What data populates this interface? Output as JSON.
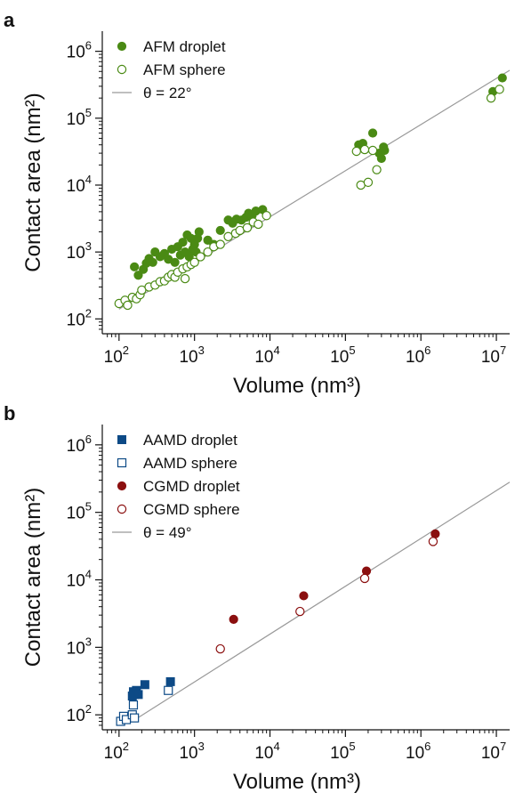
{
  "chart_data": [
    {
      "type": "scatter",
      "panel": "a",
      "xlabel": "Volume (nm³)",
      "ylabel": "Contact area (nm²)",
      "x_scale": "log",
      "y_scale": "log",
      "xlim": [
        60,
        15000000
      ],
      "ylim": [
        60,
        2000000
      ],
      "x_ticks": [
        100,
        1000,
        10000,
        100000,
        1000000,
        10000000
      ],
      "y_ticks": [
        100,
        1000,
        10000,
        100000,
        1000000
      ],
      "tick_base": "10",
      "x_tick_exponents": [
        "2",
        "3",
        "4",
        "5",
        "6",
        "7"
      ],
      "y_tick_exponents": [
        "2",
        "3",
        "4",
        "5",
        "6"
      ],
      "legend_position": "top-left",
      "series": [
        {
          "name": "AFM droplet",
          "marker": "filled-circle",
          "color": "#4a8a14",
          "points": [
            [
              160,
              600
            ],
            [
              180,
              450
            ],
            [
              210,
              550
            ],
            [
              230,
              680
            ],
            [
              250,
              800
            ],
            [
              280,
              700
            ],
            [
              300,
              1000
            ],
            [
              350,
              850
            ],
            [
              400,
              950
            ],
            [
              450,
              780
            ],
            [
              500,
              1100
            ],
            [
              550,
              700
            ],
            [
              600,
              1200
            ],
            [
              650,
              900
            ],
            [
              700,
              1400
            ],
            [
              750,
              1000
            ],
            [
              800,
              1800
            ],
            [
              850,
              850
            ],
            [
              900,
              1600
            ],
            [
              950,
              1100
            ],
            [
              1000,
              1300
            ],
            [
              1050,
              1000
            ],
            [
              1100,
              1600
            ],
            [
              1150,
              2000
            ],
            [
              1500,
              1500
            ],
            [
              1800,
              1300
            ],
            [
              2200,
              2100
            ],
            [
              2800,
              3000
            ],
            [
              3200,
              2700
            ],
            [
              3600,
              3100
            ],
            [
              4200,
              3000
            ],
            [
              4800,
              3300
            ],
            [
              5200,
              3800
            ],
            [
              5800,
              3500
            ],
            [
              6500,
              4100
            ],
            [
              8000,
              4300
            ],
            [
              150000,
              40000
            ],
            [
              170000,
              42000
            ],
            [
              230000,
              60000
            ],
            [
              280000,
              30000
            ],
            [
              320000,
              37000
            ],
            [
              300000,
              25000
            ],
            [
              330000,
              33000
            ],
            [
              9000000,
              250000
            ],
            [
              12000000,
              400000
            ]
          ]
        },
        {
          "name": "AFM sphere",
          "marker": "open-circle",
          "color": "#4a8a14",
          "points": [
            [
              100,
              170
            ],
            [
              120,
              190
            ],
            [
              130,
              160
            ],
            [
              150,
              210
            ],
            [
              170,
              200
            ],
            [
              190,
              230
            ],
            [
              200,
              270
            ],
            [
              250,
              300
            ],
            [
              300,
              320
            ],
            [
              350,
              360
            ],
            [
              400,
              370
            ],
            [
              450,
              420
            ],
            [
              500,
              460
            ],
            [
              550,
              420
            ],
            [
              600,
              500
            ],
            [
              700,
              560
            ],
            [
              750,
              400
            ],
            [
              800,
              600
            ],
            [
              900,
              650
            ],
            [
              1000,
              700
            ],
            [
              1200,
              850
            ],
            [
              1500,
              1000
            ],
            [
              1800,
              1200
            ],
            [
              2200,
              1300
            ],
            [
              2800,
              1700
            ],
            [
              3500,
              1900
            ],
            [
              4000,
              2100
            ],
            [
              5000,
              2300
            ],
            [
              6000,
              2800
            ],
            [
              7000,
              2600
            ],
            [
              9000,
              3500
            ],
            [
              140000,
              32000
            ],
            [
              160000,
              10000
            ],
            [
              180000,
              34000
            ],
            [
              200000,
              11000
            ],
            [
              230000,
              33000
            ],
            [
              260000,
              17000
            ],
            [
              8500000,
              200000
            ],
            [
              11000000,
              270000
            ]
          ]
        },
        {
          "name": "θ = 22°",
          "marker": "line",
          "color": "#999999",
          "points": [
            [
              100,
              140
            ],
            [
              15000000,
              520000
            ]
          ]
        }
      ]
    },
    {
      "type": "scatter",
      "panel": "b",
      "xlabel": "Volume (nm³)",
      "ylabel": "Contact area (nm²)",
      "x_scale": "log",
      "y_scale": "log",
      "xlim": [
        60,
        15000000
      ],
      "ylim": [
        60,
        2000000
      ],
      "x_ticks": [
        100,
        1000,
        10000,
        100000,
        1000000,
        10000000
      ],
      "y_ticks": [
        100,
        1000,
        10000,
        100000,
        1000000
      ],
      "tick_base": "10",
      "x_tick_exponents": [
        "2",
        "3",
        "4",
        "5",
        "6",
        "7"
      ],
      "y_tick_exponents": [
        "2",
        "3",
        "4",
        "5",
        "6"
      ],
      "legend_position": "top-left",
      "series": [
        {
          "name": "AAMD droplet",
          "marker": "filled-square",
          "color": "#0d4a86",
          "points": [
            [
              150,
              190
            ],
            [
              155,
              220
            ],
            [
              160,
              200
            ],
            [
              170,
              230
            ],
            [
              180,
              200
            ],
            [
              220,
              280
            ],
            [
              480,
              310
            ]
          ]
        },
        {
          "name": "AAMD sphere",
          "marker": "open-square",
          "color": "#0d4a86",
          "points": [
            [
              105,
              80
            ],
            [
              115,
              95
            ],
            [
              125,
              85
            ],
            [
              150,
              100
            ],
            [
              155,
              140
            ],
            [
              160,
              90
            ],
            [
              450,
              230
            ]
          ]
        },
        {
          "name": "CGMD droplet",
          "marker": "filled-circle",
          "color": "#8b0f0f",
          "points": [
            [
              3300,
              2600
            ],
            [
              28000,
              5800
            ],
            [
              190000,
              13500
            ],
            [
              1550000,
              48000
            ]
          ]
        },
        {
          "name": "CGMD sphere",
          "marker": "open-circle",
          "color": "#8b0f0f",
          "points": [
            [
              2200,
              950
            ],
            [
              25000,
              3400
            ],
            [
              180000,
              10500
            ],
            [
              1450000,
              37000
            ]
          ]
        },
        {
          "name": "θ = 49°",
          "marker": "line",
          "color": "#999999",
          "points": [
            [
              150,
              80
            ],
            [
              15000000,
              280000
            ]
          ]
        }
      ]
    }
  ]
}
